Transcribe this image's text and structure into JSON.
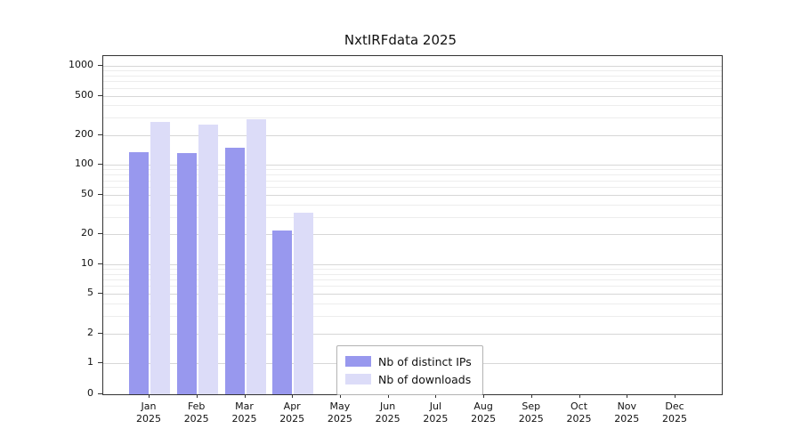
{
  "chart_data": {
    "type": "bar",
    "title": "NxtIRFdata 2025",
    "categories": [
      "Jan",
      "Feb",
      "Mar",
      "Apr",
      "May",
      "Jun",
      "Jul",
      "Aug",
      "Sep",
      "Oct",
      "Nov",
      "Dec"
    ],
    "year_label": "2025",
    "series": [
      {
        "name": "Nb of distinct IPs",
        "color": "#9898ee",
        "values": [
          135,
          133,
          150,
          22,
          0,
          0,
          0,
          0,
          0,
          0,
          0,
          0
        ]
      },
      {
        "name": "Nb of downloads",
        "color": "#dcdcf8",
        "values": [
          270,
          255,
          290,
          33,
          0,
          0,
          0,
          0,
          0,
          0,
          0,
          0
        ]
      }
    ],
    "y_ticks": [
      0,
      1,
      2,
      5,
      10,
      20,
      50,
      100,
      200,
      500,
      1000
    ],
    "y_minor_ticks": [
      3,
      4,
      6,
      7,
      8,
      9,
      30,
      40,
      60,
      70,
      80,
      90,
      300,
      400,
      600,
      700,
      800,
      900
    ],
    "scale": "symlog",
    "grid": true,
    "legend_position": "bottom-center",
    "xlabel": "",
    "ylabel": ""
  }
}
